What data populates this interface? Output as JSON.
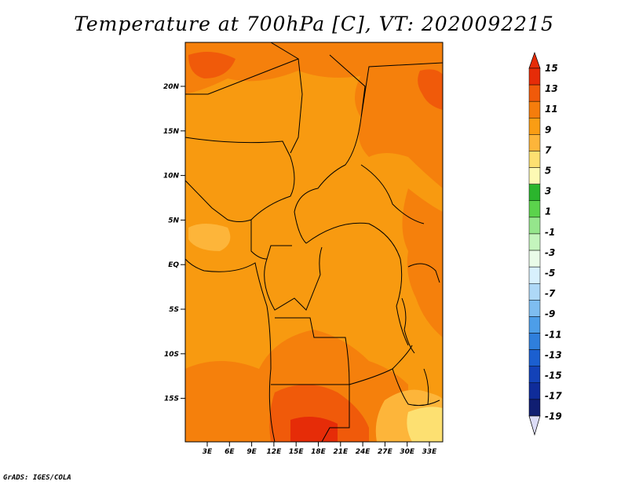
{
  "title": "Temperature at 700hPa [C], VT: 2020092215",
  "credit": "GrADS: IGES/COLA",
  "lat_labels": [
    "20N",
    "15N",
    "10N",
    "5N",
    "EQ",
    "5S",
    "10S",
    "15S"
  ],
  "lon_labels": [
    "3E",
    "6E",
    "9E",
    "12E",
    "15E",
    "18E",
    "21E",
    "24E",
    "27E",
    "30E",
    "33E"
  ],
  "colorbar": {
    "labels": [
      "15",
      "13",
      "11",
      "9",
      "7",
      "5",
      "3",
      "1",
      "-1",
      "-3",
      "-5",
      "-7",
      "-9",
      "-11",
      "-13",
      "-15",
      "-17",
      "-19"
    ],
    "colors": [
      "#e62c08",
      "#f05a0a",
      "#f57d0c",
      "#fa9d14",
      "#fdb53a",
      "#fde071",
      "#fdf9b4",
      "#2bb52d",
      "#5bd34c",
      "#95e68c",
      "#c4f5bd",
      "#e9fbe8",
      "#d8f0fd",
      "#aed8f7",
      "#7ebdf0",
      "#4d9ee8",
      "#2f7fdc",
      "#1b5fd0",
      "#1342b8",
      "#0f2c9a",
      "#101e72"
    ],
    "top_arrow_color": "#e62c08",
    "bottom_arrow_color": "#dcdcf7"
  }
}
